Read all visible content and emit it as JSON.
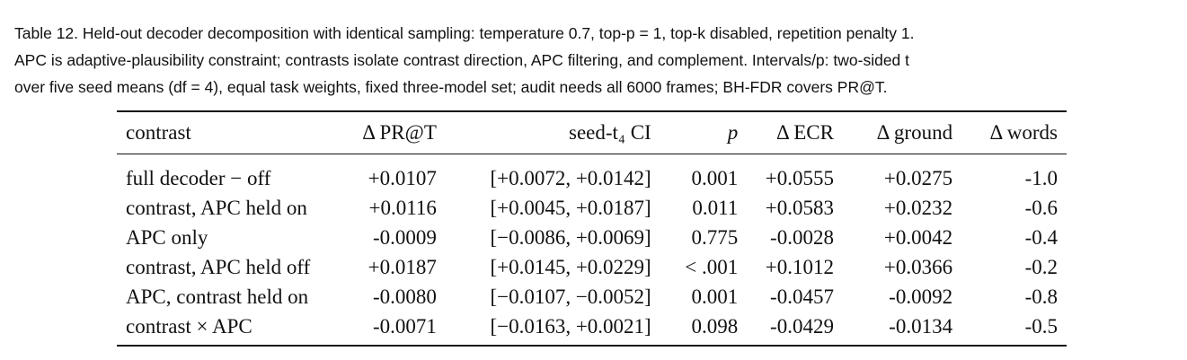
{
  "caption": {
    "line1": "Table 12.  Held-out decoder decomposition with identical sampling: temperature 0.7, top-p = 1, top-k disabled, repetition penalty 1.",
    "line2": "APC is adaptive-plausibility constraint; contrasts isolate contrast direction, APC filtering, and complement. Intervals/p: two-sided t",
    "line3": "over five seed means (df = 4), equal task weights, fixed three-model set; audit needs all 6000 frames; BH-FDR covers PR@T."
  },
  "table": {
    "headers": [
      "contrast",
      "Δ PR@T",
      "seed-t₄ CI",
      "p",
      "Δ ECR",
      "Δ ground",
      "Δ words"
    ],
    "rows": [
      [
        "full decoder − off",
        "+0.0107",
        "[+0.0072, +0.0142]",
        "0.001",
        "+0.0555",
        "+0.0275",
        "-1.0"
      ],
      [
        "contrast, APC held on",
        "+0.0116",
        "[+0.0045, +0.0187]",
        "0.011",
        "+0.0583",
        "+0.0232",
        "-0.6"
      ],
      [
        "APC only",
        "-0.0009",
        "[−0.0086, +0.0069]",
        "0.775",
        "-0.0028",
        "+0.0042",
        "-0.4"
      ],
      [
        "contrast, APC held off",
        "+0.0187",
        "[+0.0145, +0.0229]",
        "< .001",
        "+0.1012",
        "+0.0366",
        "-0.2"
      ],
      [
        "APC, contrast held on",
        "-0.0080",
        "[−0.0107, −0.0052]",
        "0.001",
        "-0.0457",
        "-0.0092",
        "-0.8"
      ],
      [
        "contrast × APC",
        "-0.0071",
        "[−0.0163, +0.0021]",
        "0.098",
        "-0.0429",
        "-0.0134",
        "-0.5"
      ]
    ]
  }
}
